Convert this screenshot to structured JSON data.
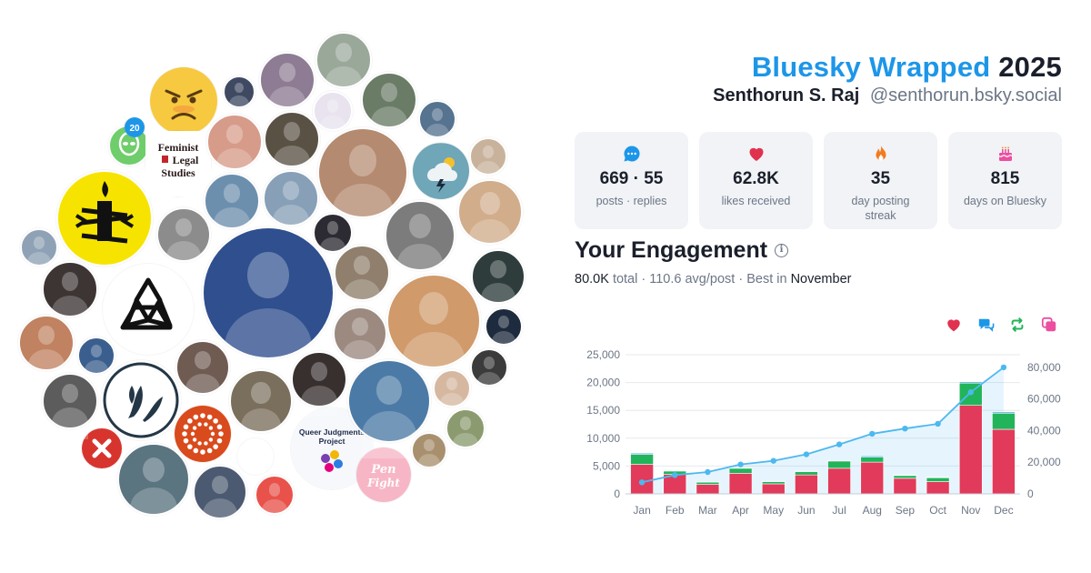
{
  "header": {
    "brand": "Bluesky Wrapped",
    "year": "2025",
    "name": "Senthorun S. Raj",
    "handle": "@senthorun.bsky.social"
  },
  "stats": [
    {
      "icon": "chat-bubble-icon",
      "value": "669 · 55",
      "label": "posts · replies",
      "color": "#1d96e8"
    },
    {
      "icon": "heart-icon",
      "value": "62.8K",
      "label": "likes received",
      "color": "#e0324f"
    },
    {
      "icon": "flame-icon",
      "value": "35",
      "label": "day posting streak",
      "color": "#f47a20"
    },
    {
      "icon": "cake-icon",
      "value": "815",
      "label": "days on Bluesky",
      "color": "#ec4fa0"
    }
  ],
  "engagement": {
    "title": "Your Engagement",
    "total": "80.0K",
    "total_label": "total",
    "avg": "110.6 avg/post",
    "best_prefix": "Best in",
    "best_month": "November",
    "legend_icons": [
      {
        "icon": "heart-icon",
        "color": "#e0324f"
      },
      {
        "icon": "reply-icon",
        "color": "#1d96e8"
      },
      {
        "icon": "repost-icon",
        "color": "#22b45a"
      },
      {
        "icon": "quote-icon",
        "color": "#ec4fa0"
      }
    ]
  },
  "avatars": [
    {
      "kind": "logo",
      "icon": "angry-emoji-icon"
    },
    {
      "kind": "logo",
      "icon": "alien-icon"
    },
    {
      "kind": "logo",
      "icon": "bluesky-20-badge-icon",
      "text": "20"
    },
    {
      "kind": "logo",
      "icon": "amnesty-candle-icon"
    },
    {
      "kind": "logo",
      "icon": "feminist-legal-studies-logo",
      "text": "Feminist Legal Studies"
    },
    {
      "kind": "logo",
      "icon": "flower-outline-icon"
    },
    {
      "kind": "logo",
      "icon": "leaf-logo-icon"
    },
    {
      "kind": "logo",
      "icon": "dots-ring-logo-icon"
    },
    {
      "kind": "logo",
      "icon": "red-x-icon"
    },
    {
      "kind": "logo",
      "icon": "weather-cloud-icon"
    },
    {
      "kind": "logo",
      "icon": "queer-judgments-logo",
      "text": "Queer Judgments Project"
    },
    {
      "kind": "logo",
      "icon": "pen-fight-logo",
      "text": "Pen Fight"
    }
  ],
  "chart_data": {
    "type": "bar",
    "categories": [
      "Jan",
      "Feb",
      "Mar",
      "Apr",
      "May",
      "Jun",
      "Jul",
      "Aug",
      "Sep",
      "Oct",
      "Nov",
      "Dec"
    ],
    "series": [
      {
        "values": [
          5300,
          3500,
          1700,
          3700,
          1800,
          3400,
          4600,
          5700,
          2800,
          2200,
          15900,
          11600
        ],
        "color": "#e23a5a",
        "stack": "monthly"
      },
      {
        "values": [
          1800,
          600,
          400,
          900,
          400,
          600,
          1300,
          900,
          500,
          700,
          4000,
          2900
        ],
        "color": "#22b45a",
        "stack": "monthly"
      },
      {
        "values": [
          200,
          100,
          100,
          100,
          100,
          100,
          100,
          200,
          100,
          100,
          200,
          200
        ],
        "color": "#1d96e8",
        "stack": "monthly"
      },
      {
        "type": "area",
        "axis": "right",
        "values": [
          7300,
          11900,
          13800,
          18600,
          20900,
          25000,
          31300,
          38000,
          41300,
          44300,
          64300,
          80000
        ],
        "color": "#4db8ef"
      }
    ],
    "y_ticks": [
      "0",
      "5,000",
      "10,000",
      "15,000",
      "20,000",
      "25,000"
    ],
    "y2_ticks": [
      "0",
      "20,000",
      "40,000",
      "60,000",
      "80,000"
    ],
    "ylim": [
      0,
      25000
    ],
    "y2lim": [
      0,
      88000
    ],
    "grid": true
  }
}
